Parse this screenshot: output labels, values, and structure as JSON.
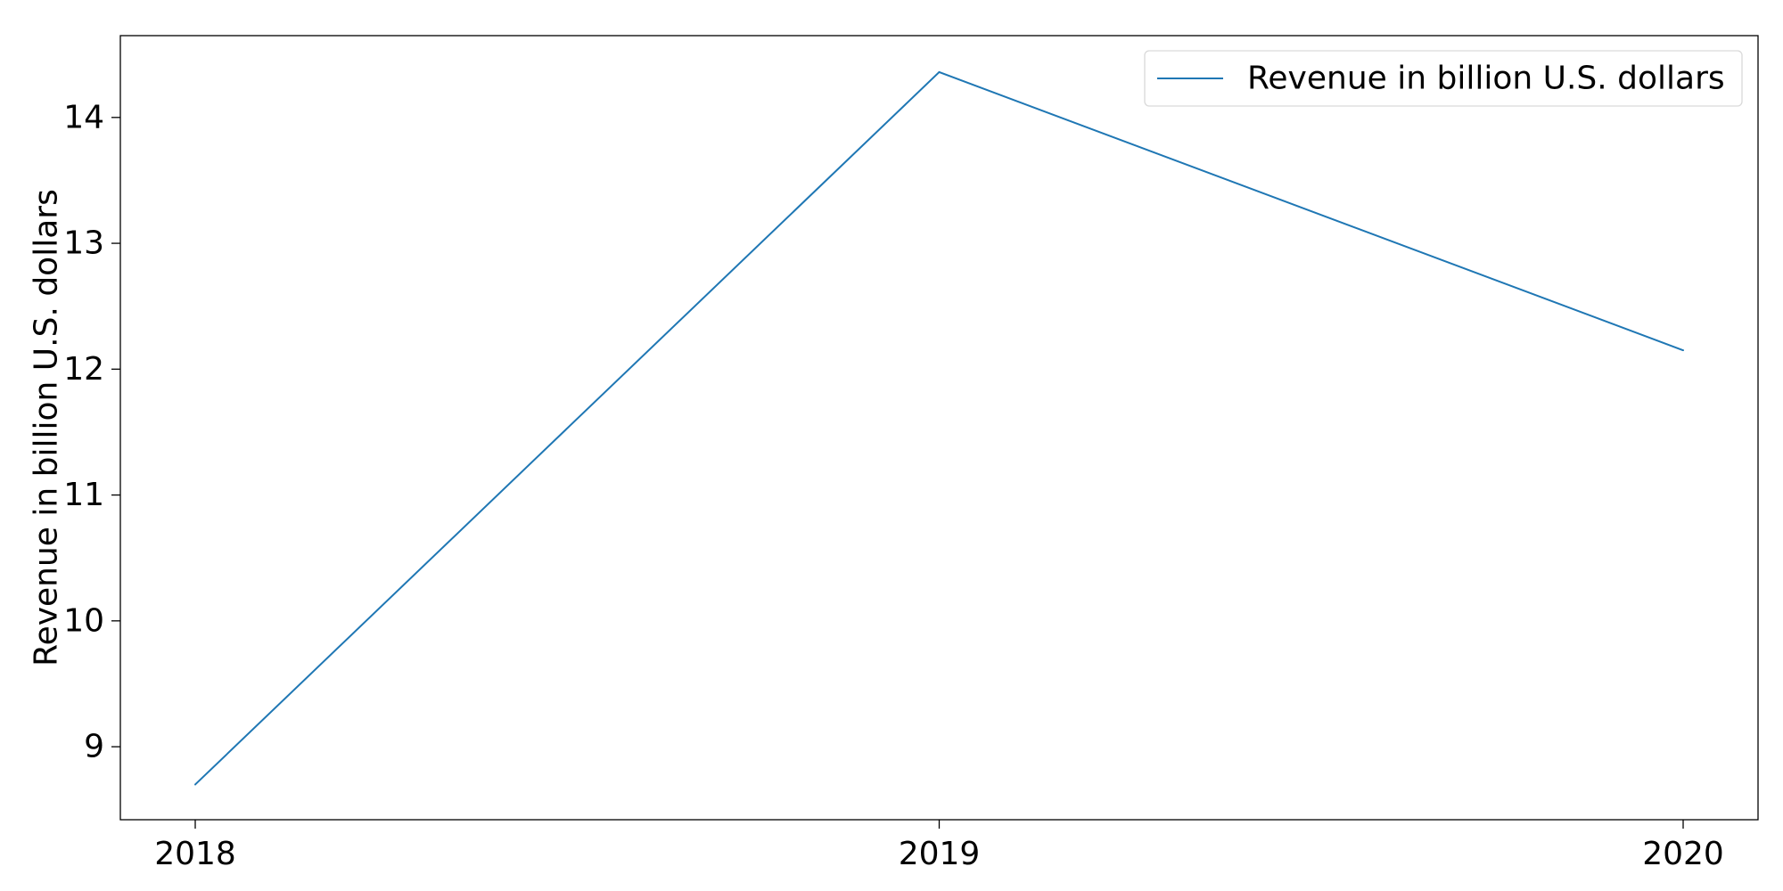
{
  "chart_data": {
    "type": "line",
    "title": "",
    "xlabel": "",
    "ylabel": "Revenue in billion U.S. dollars",
    "x": [
      "2018",
      "2019",
      "2020"
    ],
    "series": [
      {
        "name": "Revenue in billion U.S. dollars",
        "values": [
          8.7,
          14.36,
          12.15
        ],
        "color": "#1f77b4"
      }
    ],
    "ylim": [
      8.42,
      14.65
    ],
    "yticks": [
      9,
      10,
      11,
      12,
      13,
      14
    ],
    "grid": false,
    "legend": "top-right"
  }
}
